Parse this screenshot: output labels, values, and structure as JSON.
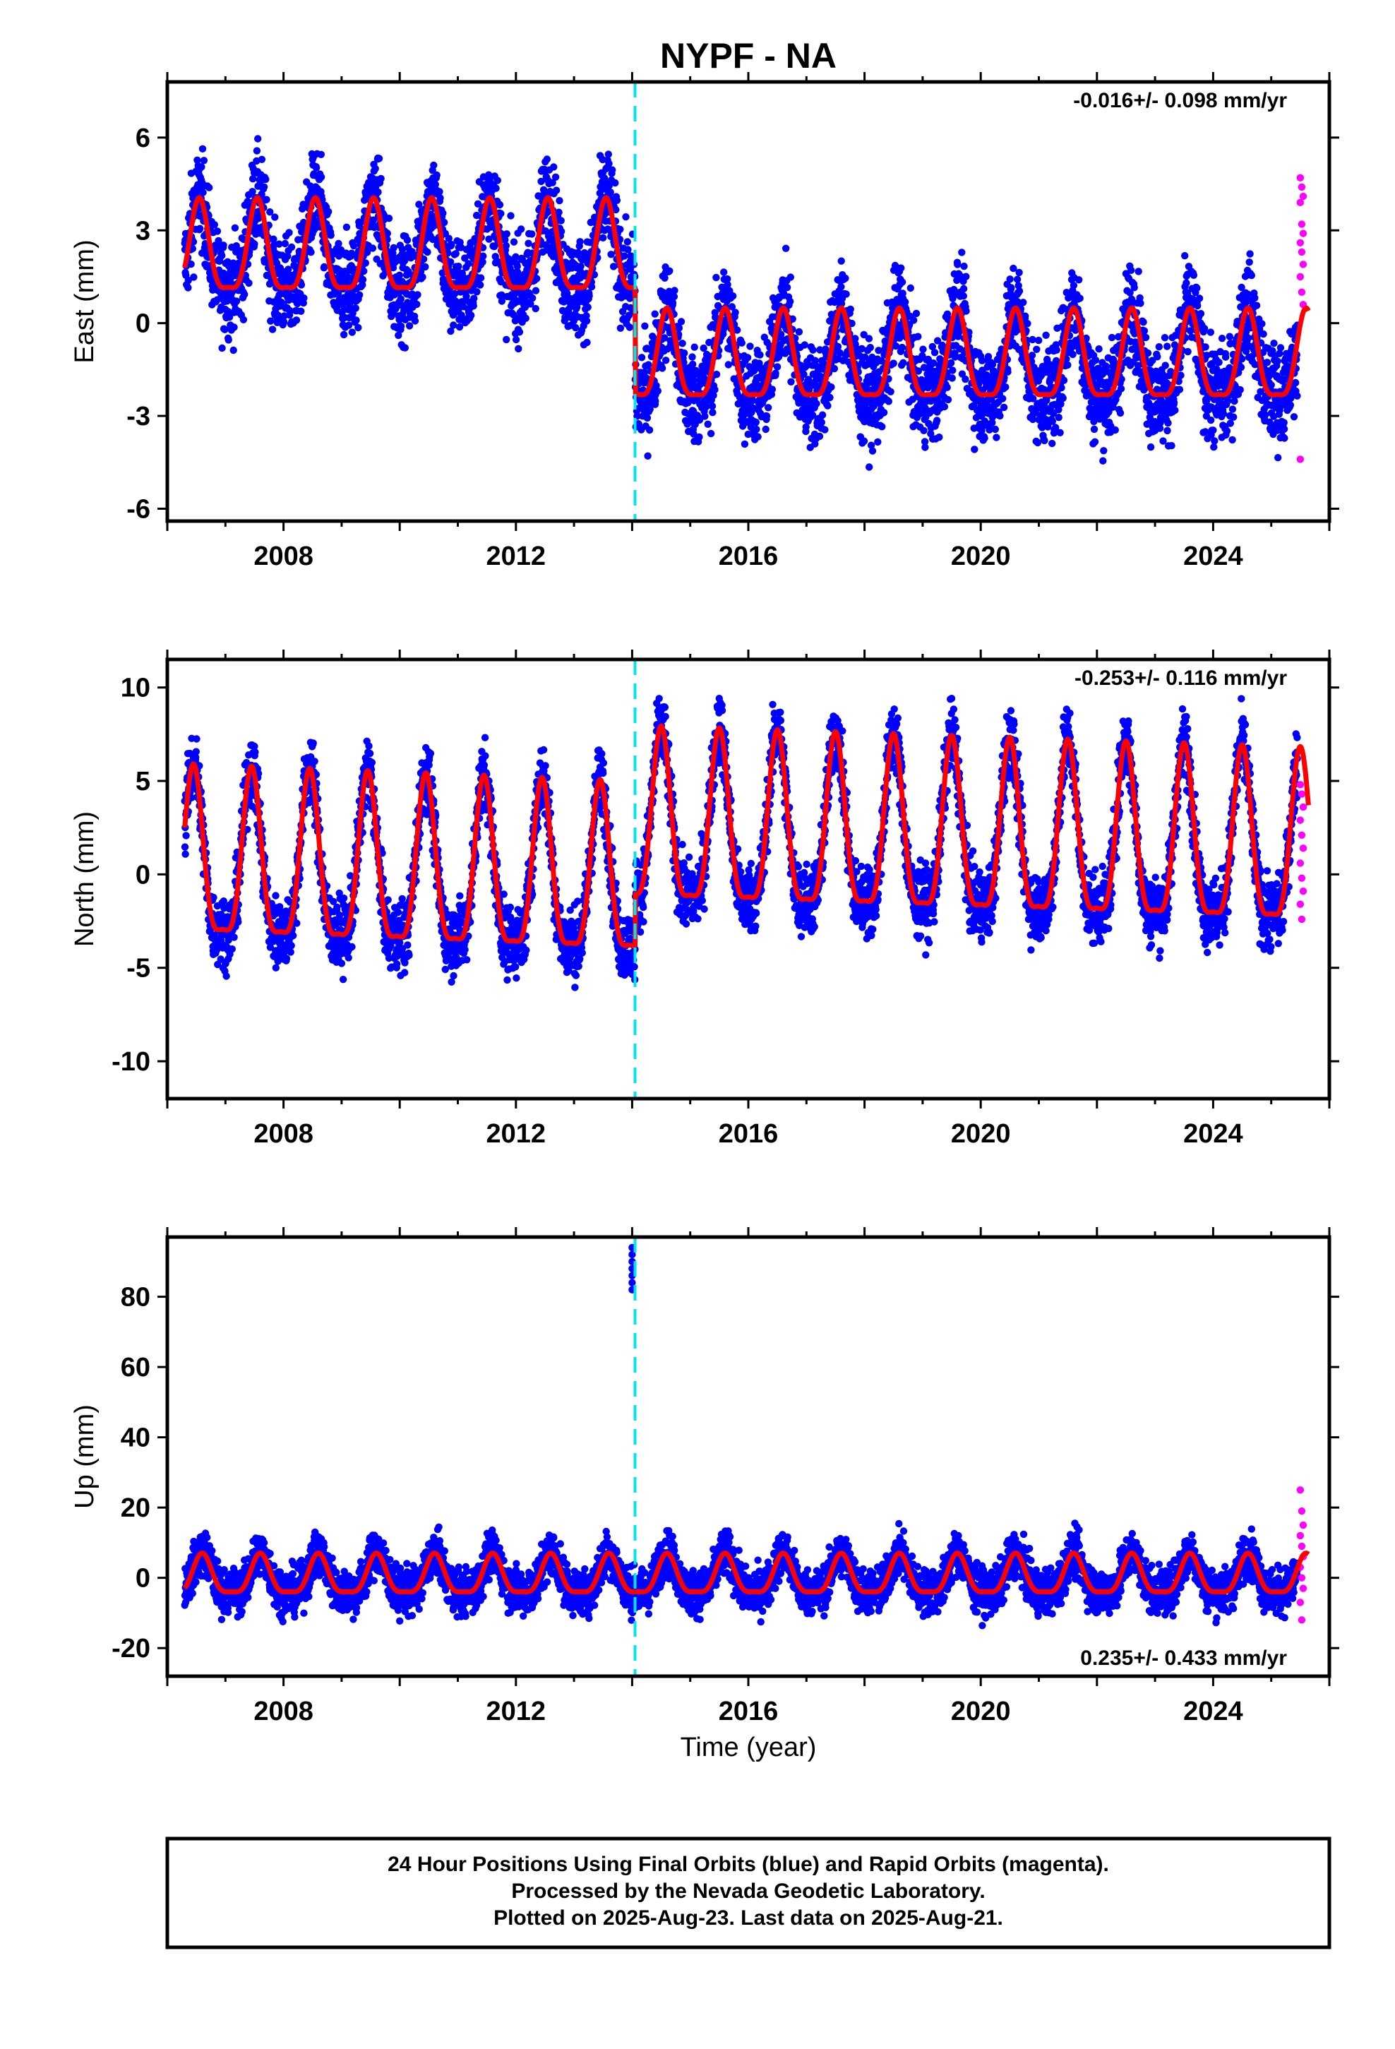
{
  "title": "NYPF - NA",
  "xlabel": "Time (year)",
  "footer": [
    "24 Hour Positions Using Final Orbits (blue) and Rapid Orbits (magenta).",
    "Processed by the Nevada Geodetic Laboratory.",
    "Plotted on 2025-Aug-23. Last data on 2025-Aug-21."
  ],
  "colors": {
    "final_orbits": "#0000ff",
    "rapid_orbits": "#ff00ff",
    "model_fit": "#ff0000",
    "offset_marker": "#00e5ee"
  },
  "chart_data": [
    {
      "type": "scatter",
      "component": "east",
      "ylabel": "East (mm)",
      "rate_text": "-0.016+/- 0.098 mm/yr",
      "xlim": [
        2006.0,
        2026.0
      ],
      "ylim": [
        -6.4,
        7.8
      ],
      "xticks": [
        2008,
        2012,
        2016,
        2020,
        2024
      ],
      "yticks": [
        -6,
        -3,
        0,
        3,
        6
      ],
      "x_start": 2006.3,
      "x_end_final": 2025.45,
      "x_end_rapid": 2025.64,
      "offset_epoch": 2014.05,
      "fit_before": {
        "level": 2.2,
        "amplitude": 1.45,
        "peak_phase": 0.55
      },
      "fit_after": {
        "level": -1.3,
        "amplitude": 1.4,
        "peak_phase": 0.6
      },
      "scatter_sd": 1.1,
      "rapid_values": [
        4.7,
        4.4,
        4.1,
        3.9,
        3.2,
        2.9,
        2.6,
        2.3,
        1.9,
        1.5,
        1.0,
        0.6,
        -4.4
      ]
    },
    {
      "type": "scatter",
      "component": "north",
      "ylabel": "North (mm)",
      "rate_text": "-0.253+/- 0.116 mm/yr",
      "xlim": [
        2006.0,
        2026.0
      ],
      "ylim": [
        -12.0,
        11.5
      ],
      "xticks": [
        2008,
        2012,
        2016,
        2020,
        2024
      ],
      "yticks": [
        -10,
        -5,
        0,
        5,
        10
      ],
      "x_start": 2006.3,
      "x_end_final": 2025.45,
      "x_end_rapid": 2025.64,
      "offset_epoch": 2014.05,
      "fit_before": {
        "level": 0.3,
        "amplitude": 4.4,
        "peak_phase": 0.45,
        "trend": -0.12
      },
      "fit_after": {
        "level": 3.0,
        "amplitude": 4.5,
        "peak_phase": 0.5,
        "trend": -0.1
      },
      "scatter_sd": 1.3,
      "rapid_values": [
        4.8,
        4.3,
        3.6,
        2.9,
        2.1,
        1.4,
        0.6,
        -0.2,
        -0.9,
        -1.6,
        -2.4
      ]
    },
    {
      "type": "scatter",
      "component": "up",
      "ylabel": "Up (mm)",
      "rate_text": "0.235+/- 0.433 mm/yr",
      "xlim": [
        2006.0,
        2026.0
      ],
      "ylim": [
        -28,
        97
      ],
      "xticks": [
        2008,
        2012,
        2016,
        2020,
        2024
      ],
      "yticks": [
        -20,
        0,
        20,
        40,
        60,
        80
      ],
      "x_start": 2006.3,
      "x_end_final": 2025.45,
      "x_end_rapid": 2025.64,
      "offset_epoch": 2014.05,
      "fit_before": {
        "level": 0,
        "amplitude": 5.5,
        "peak_phase": 0.6
      },
      "fit_after": {
        "level": 0,
        "amplitude": 5.5,
        "peak_phase": 0.6
      },
      "scatter_sd": 4.5,
      "outliers": [
        {
          "x": 2014.0,
          "y": [
            82,
            84,
            86,
            88,
            90,
            92,
            94
          ]
        }
      ],
      "rapid_values": [
        25,
        19,
        15,
        12,
        9,
        6,
        3,
        0,
        -3,
        -7,
        -12
      ]
    }
  ]
}
